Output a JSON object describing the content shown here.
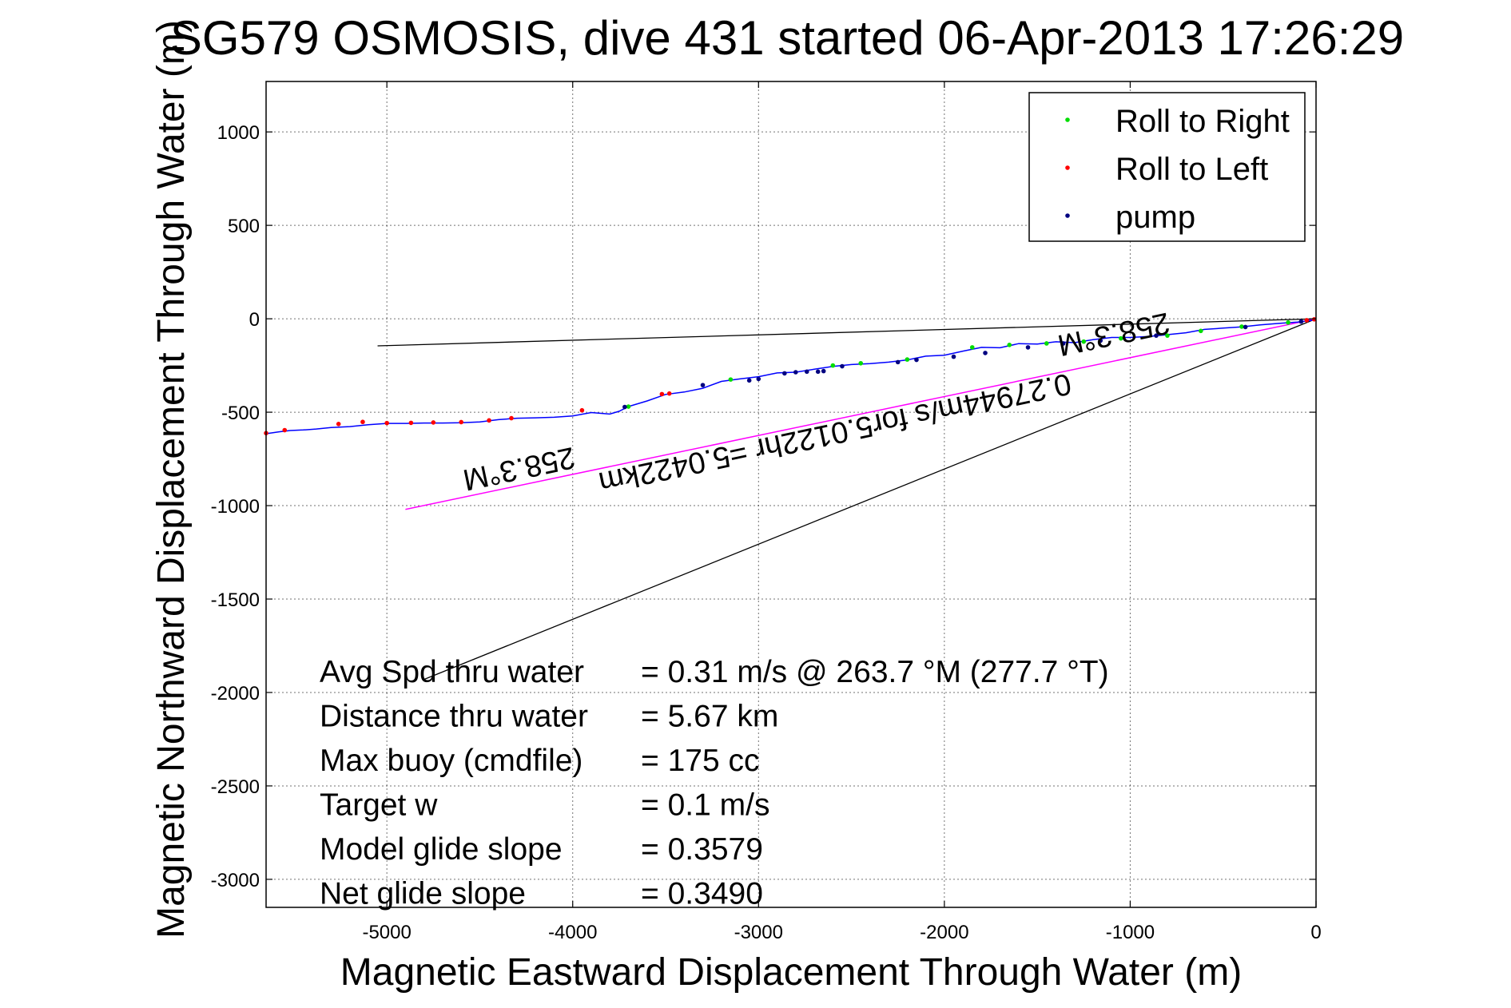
{
  "chart_data": {
    "type": "line",
    "title": "SG579 OSMOSIS, dive 431 started 06-Apr-2013 17:26:29",
    "xlabel": "Magnetic Eastward Displacement Through Water (m)",
    "ylabel": "Magnetic Northward Displacement Through Water (m)",
    "xlim": [
      -5650,
      0
    ],
    "ylim": [
      -3150,
      1270
    ],
    "xticks": [
      -5000,
      -4000,
      -3000,
      -2000,
      -1000,
      0
    ],
    "yticks": [
      1000,
      500,
      0,
      -500,
      -1000,
      -1500,
      -2000,
      -2500,
      -3000
    ],
    "grid": true,
    "legend_position": "top-right",
    "legend": [
      {
        "label": "Roll to Right",
        "color": "#00dd00"
      },
      {
        "label": "Roll to Left",
        "color": "#ff0000"
      },
      {
        "label": "pump",
        "color": "#000080"
      }
    ],
    "colors": {
      "track": "#0000ff",
      "current": "#ff00ff",
      "guide": "#000000",
      "roll_right": "#00dd00",
      "roll_left": "#ff0000",
      "pump": "#000080"
    },
    "track": {
      "x": [
        -5650,
        -5580,
        -5520,
        -5450,
        -5380,
        -5300,
        -5200,
        -5100,
        -5000,
        -4900,
        -4800,
        -4700,
        -4600,
        -4500,
        -4400,
        -4300,
        -4200,
        -4100,
        -4000,
        -3900,
        -3800,
        -3750,
        -3700,
        -3600,
        -3500,
        -3400,
        -3300,
        -3200,
        -3100,
        -3000,
        -2900,
        -2800,
        -2700,
        -2600,
        -2500,
        -2400,
        -2300,
        -2200,
        -2100,
        -2000,
        -1900,
        -1800,
        -1700,
        -1600,
        -1500,
        -1400,
        -1300,
        -1200,
        -1100,
        -1000,
        -900,
        -800,
        -700,
        -600,
        -500,
        -400,
        -300,
        -200,
        -100,
        -50,
        0
      ],
      "y": [
        -615,
        -605,
        -598,
        -595,
        -590,
        -582,
        -577,
        -567,
        -560,
        -560,
        -558,
        -558,
        -556,
        -552,
        -540,
        -532,
        -530,
        -527,
        -520,
        -502,
        -510,
        -495,
        -470,
        -440,
        -405,
        -392,
        -372,
        -335,
        -322,
        -310,
        -290,
        -286,
        -270,
        -255,
        -245,
        -240,
        -232,
        -220,
        -200,
        -195,
        -173,
        -153,
        -155,
        -133,
        -135,
        -123,
        -128,
        -112,
        -100,
        -100,
        -95,
        -85,
        -75,
        -57,
        -50,
        -43,
        -33,
        -25,
        -18,
        -12,
        -5
      ]
    },
    "roll_right": {
      "x": [
        -3700,
        -3150,
        -2600,
        -2450,
        -2200,
        -1850,
        -1650,
        -1450,
        -1250,
        -1050,
        -800,
        -620,
        -400,
        -150
      ],
      "y": [
        -470,
        -325,
        -250,
        -238,
        -218,
        -153,
        -140,
        -132,
        -122,
        -105,
        -90,
        -65,
        -42,
        -20
      ]
    },
    "roll_left": {
      "x": [
        -5650,
        -5550,
        -5260,
        -5130,
        -5000,
        -4870,
        -4750,
        -4600,
        -4450,
        -4330,
        -3950,
        -3520,
        -3480,
        -50,
        -10
      ],
      "y": [
        -612,
        -596,
        -563,
        -552,
        -558,
        -557,
        -555,
        -553,
        -544,
        -532,
        -490,
        -403,
        -400,
        -8,
        -3
      ]
    },
    "pump": {
      "x": [
        -3720,
        -3300,
        -3050,
        -3000,
        -2860,
        -2800,
        -2740,
        -2680,
        -2650,
        -2550,
        -2250,
        -2150,
        -1950,
        -1780,
        -1550,
        -1360,
        -1160,
        -860,
        -380,
        -80
      ],
      "y": [
        -472,
        -355,
        -330,
        -322,
        -292,
        -286,
        -283,
        -283,
        -280,
        -254,
        -232,
        -220,
        -203,
        -183,
        -153,
        -132,
        -117,
        -90,
        -44,
        -15
      ]
    },
    "lines": {
      "current": {
        "x": [
          0,
          -4900
        ],
        "y": [
          0,
          -1020
        ]
      },
      "guide_upper": {
        "x": [
          0,
          -5050
        ],
        "y": [
          0,
          -145
        ]
      },
      "guide_lower": {
        "x": [
          0,
          -4800
        ],
        "y": [
          0,
          -1930
        ]
      }
    },
    "annotations": [
      {
        "text": "0.27944m/s for5.0122hr =5.0422km",
        "x": -2600,
        "y": -560,
        "angle": 168
      },
      {
        "text": "258.3°M",
        "x": -1100,
        "y": -30,
        "angle": 168
      },
      {
        "text": "258.3°M",
        "x": -4300,
        "y": -750,
        "angle": 168
      }
    ],
    "stats": [
      {
        "label": "Avg Spd thru water",
        "value": "=  0.31 m/s @ 263.7 °M (277.7 °T)"
      },
      {
        "label": "Distance thru water",
        "value": "=  5.67 km"
      },
      {
        "label": "Max buoy (cmdfile)",
        "value": "= 175 cc"
      },
      {
        "label": "Target w",
        "value": "= 0.1 m/s"
      },
      {
        "label": "Model glide slope",
        "value": "= 0.3579"
      },
      {
        "label": "Net glide slope",
        "value": "= 0.3490"
      }
    ]
  }
}
